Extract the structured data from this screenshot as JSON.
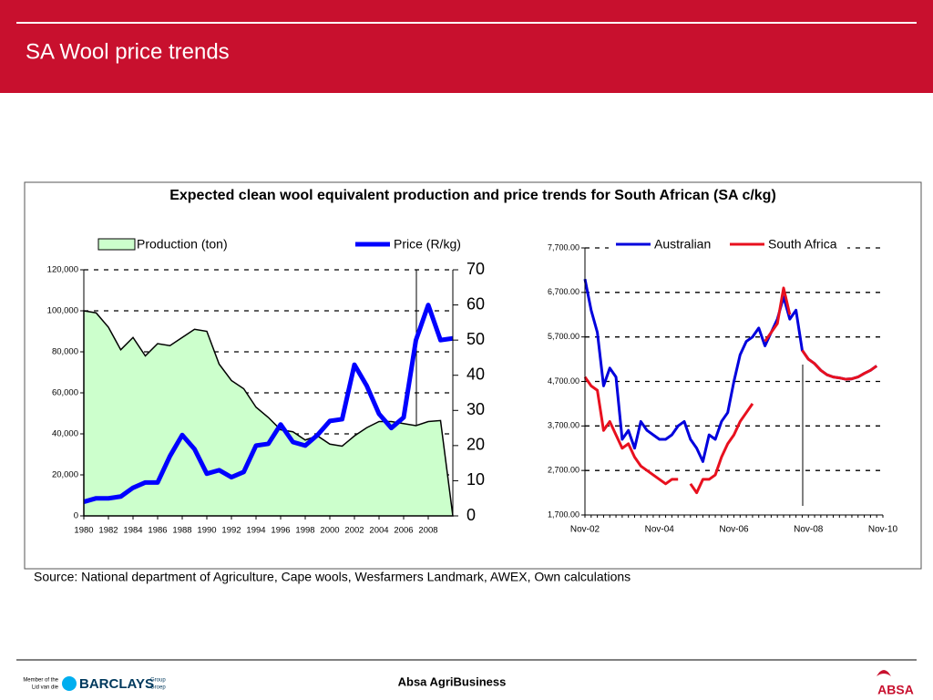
{
  "header": {
    "title": "SA Wool price trends"
  },
  "panel_title": "Expected clean wool equivalent production and price trends for South African  (SA c/kg)",
  "source": "Source: National department of Agriculture, Cape wools, Wesfarmers Landmark, AWEX,  Own calculations",
  "footer": {
    "center": "Absa AgriBusiness",
    "member": "Member of the",
    "member2": "Lid van die",
    "barclays": "BARCLAYS",
    "group": "Group",
    "group2": "Groep",
    "absa": "ABSA"
  },
  "chart_data": [
    {
      "type": "combo",
      "x": [
        1980,
        1981,
        1982,
        1983,
        1984,
        1985,
        1986,
        1987,
        1988,
        1989,
        1990,
        1991,
        1992,
        1993,
        1994,
        1995,
        1996,
        1997,
        1998,
        1999,
        2000,
        2001,
        2002,
        2003,
        2004,
        2005,
        2006,
        2007,
        2008,
        2009,
        2010
      ],
      "xlim": [
        1980,
        2010
      ],
      "xticks": [
        1980,
        1982,
        1984,
        1986,
        1988,
        1990,
        1992,
        1994,
        1996,
        1998,
        2000,
        2002,
        2004,
        2006,
        2008
      ],
      "ylim": [
        0,
        120000
      ],
      "yticks": [
        0,
        {
          "value": 20000,
          "label": "20,000"
        },
        {
          "value": 40000,
          "label": "40,000"
        },
        {
          "value": 60000,
          "label": "60,000"
        },
        {
          "value": 80000,
          "label": "80,000"
        },
        {
          "value": 100000,
          "label": "100,000"
        },
        {
          "value": 120000,
          "label": "120,000"
        }
      ],
      "y2lim": [
        0,
        70
      ],
      "y2ticks": [
        0,
        10,
        20,
        30,
        40,
        50,
        60,
        70
      ],
      "grid": true,
      "series": [
        {
          "name": "Production (ton)",
          "type": "area",
          "color": "#ccffcc",
          "values": [
            100000,
            99000,
            92000,
            81000,
            87000,
            78000,
            84000,
            83000,
            87000,
            91000,
            90000,
            74000,
            66000,
            62000,
            53000,
            48000,
            42000,
            41000,
            37000,
            39000,
            35000,
            34000,
            39000,
            43000,
            46000,
            46000,
            45000,
            44000,
            46000,
            46500,
            0
          ]
        },
        {
          "name": "Price (R/kg)",
          "type": "line",
          "axis": "y2",
          "color": "#0000ff",
          "values": [
            4,
            5,
            5,
            5.5,
            8,
            9.5,
            9.5,
            17,
            23,
            19,
            12,
            13,
            11,
            12.5,
            20,
            20.5,
            26,
            21,
            20,
            23,
            27,
            27.5,
            43,
            37,
            29,
            25,
            28,
            50,
            60,
            50,
            50.5
          ]
        }
      ]
    },
    {
      "type": "line",
      "categories": [
        "Nov-02",
        null,
        null,
        null,
        null,
        null,
        null,
        null,
        null,
        null,
        null,
        null,
        "Nov-04",
        null,
        null,
        null,
        null,
        null,
        null,
        null,
        null,
        null,
        null,
        null,
        "Nov-06",
        null,
        null,
        null,
        null,
        null,
        null,
        null,
        null,
        null,
        null,
        null,
        "Nov-08",
        null,
        null,
        null,
        null,
        null,
        null,
        null,
        null,
        null,
        null,
        null,
        "Nov-10"
      ],
      "ylim": [
        1700,
        7700
      ],
      "yticks": [
        {
          "value": 1700,
          "label": "1,700.00"
        },
        {
          "value": 2700,
          "label": "2,700.00"
        },
        {
          "value": 3700,
          "label": "3,700.00"
        },
        {
          "value": 4700,
          "label": "4,700.00"
        },
        {
          "value": 5700,
          "label": "5,700.00"
        },
        {
          "value": 6700,
          "label": "6,700.00"
        },
        {
          "value": 7700,
          "label": "7,700.00"
        }
      ],
      "grid": true,
      "series": [
        {
          "name": "Australian",
          "color": "#0000dd",
          "values": [
            7000,
            6300,
            5800,
            4600,
            5000,
            4800,
            3400,
            3600,
            3200,
            3800,
            3600,
            3500,
            3400,
            3400,
            3500,
            3700,
            3800,
            3400,
            3200,
            2900,
            3500,
            3400,
            3800,
            4000,
            4700,
            5300,
            5600,
            5700,
            5900,
            5500,
            5800,
            6100,
            6600,
            6100,
            6300,
            5400,
            5200,
            5100,
            4950,
            4850,
            4800,
            4780,
            4750,
            4760,
            4800,
            4880,
            4950,
            5050,
            null
          ]
        },
        {
          "name": "South Africa",
          "color": "#e8101e",
          "values": [
            4800,
            4600,
            4500,
            3600,
            3800,
            3500,
            3200,
            3300,
            3000,
            2800,
            2700,
            2600,
            2500,
            2400,
            2500,
            2500,
            null,
            2400,
            2200,
            2500,
            2500,
            2600,
            3000,
            3300,
            3500,
            3800,
            4000,
            4200,
            null,
            5600,
            5800,
            6000,
            6800,
            6200,
            null,
            5400,
            5200,
            5100,
            4950,
            4850,
            4800,
            4780,
            4750,
            4760,
            4800,
            4880,
            4950,
            5050,
            null
          ]
        }
      ]
    }
  ]
}
